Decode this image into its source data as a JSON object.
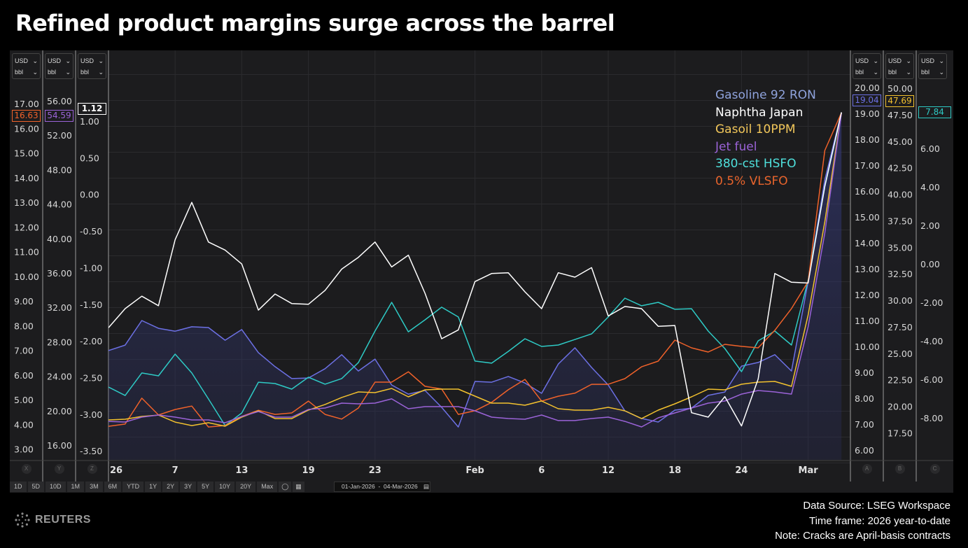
{
  "title": "Refined product margins surge across the barrel",
  "footer": {
    "lines": [
      "Data Source: LSEG Workspace",
      "Time frame: 2026 year-to-date",
      "Note: Cracks are April-basis contracts"
    ],
    "logo": "REUTERS"
  },
  "unit_selector": {
    "currency": "USD",
    "unit": "bbl"
  },
  "axis_letters": {
    "X": "X",
    "Y": "Y",
    "Z": "Z",
    "A": "A",
    "B": "B",
    "C": "C"
  },
  "toolbar": {
    "ranges": [
      "1D",
      "5D",
      "10D",
      "1M",
      "3M",
      "6M",
      "YTD",
      "1Y",
      "2Y",
      "3Y",
      "5Y",
      "10Y",
      "20Y",
      "Max"
    ],
    "icons": [
      "settings-icon",
      "table-icon"
    ],
    "date_range": "01-Jan-2026  -  04-Mar-2026",
    "calendar_icon": "calendar-icon"
  },
  "chart_data": {
    "type": "line",
    "title": "Refined product margins surge across the barrel",
    "grid": true,
    "legend_placement": "top-right",
    "x": [
      "2026-01-01",
      "2026-01-02",
      "2026-01-05",
      "2026-01-06",
      "2026-01-07",
      "2026-01-08",
      "2026-01-09",
      "2026-01-12",
      "2026-01-13",
      "2026-01-14",
      "2026-01-15",
      "2026-01-16",
      "2026-01-19",
      "2026-01-20",
      "2026-01-21",
      "2026-01-22",
      "2026-01-23",
      "2026-01-26",
      "2026-01-27",
      "2026-01-28",
      "2026-01-29",
      "2026-01-30",
      "2026-02-02",
      "2026-02-03",
      "2026-02-04",
      "2026-02-05",
      "2026-02-06",
      "2026-02-09",
      "2026-02-10",
      "2026-02-11",
      "2026-02-12",
      "2026-02-13",
      "2026-02-16",
      "2026-02-17",
      "2026-02-18",
      "2026-02-19",
      "2026-02-20",
      "2026-02-23",
      "2026-02-24",
      "2026-02-25",
      "2026-02-26",
      "2026-02-27",
      "2026-03-02",
      "2026-03-03",
      "2026-03-04"
    ],
    "x_ticks": [
      {
        "label": "26",
        "index": 0
      },
      {
        "label": "7",
        "index": 4
      },
      {
        "label": "13",
        "index": 8
      },
      {
        "label": "19",
        "index": 12
      },
      {
        "label": "23",
        "index": 16
      },
      {
        "label": "Feb",
        "index": 22
      },
      {
        "label": "6",
        "index": 26
      },
      {
        "label": "12",
        "index": 30
      },
      {
        "label": "18",
        "index": 34
      },
      {
        "label": "24",
        "index": 38
      },
      {
        "label": "Mar",
        "index": 42
      }
    ],
    "axes": {
      "X": {
        "side": "left",
        "range": [
          2.5,
          17.5
        ],
        "ticks": [
          "17.00",
          "16.00",
          "15.00",
          "14.00",
          "13.00",
          "12.00",
          "11.00",
          "10.00",
          "9.00",
          "8.00",
          "7.00",
          "6.00",
          "5.00",
          "4.00",
          "3.00"
        ]
      },
      "Y": {
        "side": "left",
        "range": [
          14,
          58
        ],
        "ticks": [
          "56.00",
          "52.00",
          "48.00",
          "44.00",
          "40.00",
          "36.00",
          "32.00",
          "28.00",
          "24.00",
          "20.00",
          "16.00"
        ]
      },
      "Z": {
        "side": "left",
        "range": [
          -3.6,
          1.5
        ],
        "ticks": [
          "1.00",
          "0.50",
          "0.00",
          "-0.50",
          "-1.00",
          "-1.50",
          "-2.00",
          "-2.50",
          "-3.00",
          "-3.50"
        ]
      },
      "A": {
        "side": "right",
        "range": [
          5.5,
          20.5
        ],
        "ticks": [
          "20.00",
          "19.00",
          "18.00",
          "17.00",
          "16.00",
          "15.00",
          "14.00",
          "13.00",
          "12.00",
          "11.00",
          "10.00",
          "9.00",
          "8.00",
          "7.00",
          "6.00"
        ]
      },
      "B": {
        "side": "right",
        "range": [
          16,
          51
        ],
        "ticks": [
          "50.00",
          "47.50",
          "45.00",
          "42.50",
          "40.00",
          "37.50",
          "35.00",
          "32.50",
          "30.00",
          "27.50",
          "25.00",
          "22.50",
          "20.00",
          "17.50"
        ]
      },
      "C": {
        "side": "right",
        "range": [
          -9,
          8
        ],
        "ticks": [
          "6.00",
          "4.00",
          "2.00",
          "0.00",
          "-2.00",
          "-4.00",
          "-6.00",
          "-8.00"
        ]
      }
    },
    "series": [
      {
        "name": "Gasoline 92 RON",
        "axis": "A",
        "color": "#6c70e4",
        "legend_color": "#8fa3dc",
        "area": true,
        "last": "19.04",
        "values": [
          9.84,
          10.05,
          11.0,
          10.7,
          10.59,
          10.76,
          10.73,
          10.24,
          10.65,
          9.76,
          9.22,
          8.76,
          8.78,
          9.14,
          9.68,
          9.05,
          9.51,
          8.51,
          8.16,
          8.3,
          7.65,
          6.89,
          8.65,
          8.62,
          8.84,
          8.59,
          8.19,
          9.32,
          9.95,
          9.19,
          8.51,
          7.51,
          7.22,
          7.08,
          7.54,
          7.62,
          8.11,
          8.24,
          9.24,
          9.38,
          9.68,
          9.05,
          12.51,
          16.43,
          19.04
        ]
      },
      {
        "name": "Naphtha Japan",
        "axis": "Z",
        "color": "#ffffff",
        "legend_color": "#ffffff",
        "last": "1.12",
        "values": [
          -1.82,
          -1.56,
          -1.39,
          -1.52,
          -0.62,
          -0.11,
          -0.65,
          -0.76,
          -0.95,
          -1.58,
          -1.36,
          -1.49,
          -1.5,
          -1.31,
          -1.02,
          -0.86,
          -0.65,
          -0.99,
          -0.83,
          -1.35,
          -1.97,
          -1.85,
          -1.19,
          -1.08,
          -1.07,
          -1.33,
          -1.56,
          -1.07,
          -1.13,
          -1.0,
          -1.66,
          -1.53,
          -1.56,
          -1.8,
          -1.79,
          -2.98,
          -3.04,
          -2.76,
          -3.16,
          -2.52,
          -1.08,
          -1.2,
          -1.21,
          0.11,
          1.12
        ]
      },
      {
        "name": "Gasoil 10PPM",
        "axis": "B",
        "color": "#f2c12e",
        "legend_color": "#f2c75a",
        "last": "47.69",
        "values": [
          18.71,
          18.78,
          19.04,
          19.17,
          18.51,
          18.18,
          18.45,
          18.12,
          18.98,
          19.57,
          18.84,
          18.84,
          19.64,
          20.17,
          20.83,
          21.35,
          21.29,
          21.68,
          20.89,
          21.55,
          21.62,
          21.62,
          20.96,
          20.3,
          20.3,
          20.1,
          20.5,
          19.77,
          19.64,
          19.64,
          19.9,
          19.57,
          18.84,
          19.64,
          20.23,
          20.89,
          21.62,
          21.55,
          22.08,
          22.28,
          22.34,
          21.88,
          28.61,
          37.39,
          47.69
        ]
      },
      {
        "name": "Jet fuel",
        "axis": "Y",
        "color": "#9b63d8",
        "legend_color": "#9b63d8",
        "last": "54.59",
        "values": [
          18.76,
          18.68,
          19.25,
          19.5,
          19.25,
          18.93,
          18.93,
          18.6,
          19.33,
          19.9,
          19.25,
          19.25,
          20.15,
          20.31,
          20.88,
          20.8,
          20.88,
          21.37,
          20.23,
          20.47,
          20.47,
          20.47,
          19.98,
          19.25,
          19.09,
          19.01,
          19.5,
          18.85,
          18.85,
          19.09,
          19.25,
          18.76,
          18.11,
          19.17,
          19.74,
          20.31,
          20.88,
          21.12,
          21.93,
          22.34,
          22.18,
          21.93,
          29.74,
          40.63,
          54.59
        ]
      },
      {
        "name": "380-cst HSFO",
        "axis": "C",
        "color": "#2ecac5",
        "legend_color": "#4fe0dc",
        "last": "7.84",
        "values": [
          -6.4,
          -6.84,
          -5.67,
          -5.82,
          -4.69,
          -5.67,
          -7.02,
          -8.4,
          -7.75,
          -6.15,
          -6.22,
          -6.51,
          -5.89,
          -6.25,
          -5.96,
          -5.13,
          -3.49,
          -2.0,
          -3.53,
          -2.91,
          -2.25,
          -2.76,
          -5.05,
          -5.16,
          -4.55,
          -3.89,
          -4.29,
          -4.22,
          -3.93,
          -3.64,
          -2.76,
          -1.78,
          -2.18,
          -2.0,
          -2.36,
          -2.33,
          -3.49,
          -4.4,
          -5.6,
          -4.0,
          -3.49,
          -4.22,
          -0.84,
          4.0,
          7.84
        ]
      },
      {
        "name": "0.5% VLSFO",
        "axis": "X",
        "color": "#f0622a",
        "legend_color": "#e8642c",
        "last": "16.63",
        "values": [
          3.92,
          4.01,
          5.06,
          4.38,
          4.6,
          4.74,
          3.89,
          3.95,
          4.32,
          4.57,
          4.4,
          4.46,
          4.94,
          4.4,
          4.21,
          4.66,
          5.71,
          5.71,
          6.13,
          5.54,
          5.43,
          4.4,
          4.55,
          4.89,
          5.4,
          5.82,
          4.94,
          5.14,
          5.26,
          5.62,
          5.62,
          5.85,
          6.33,
          6.56,
          7.41,
          7.1,
          6.93,
          7.24,
          7.16,
          7.1,
          7.81,
          8.69,
          9.79,
          15.1,
          16.63
        ]
      }
    ]
  }
}
